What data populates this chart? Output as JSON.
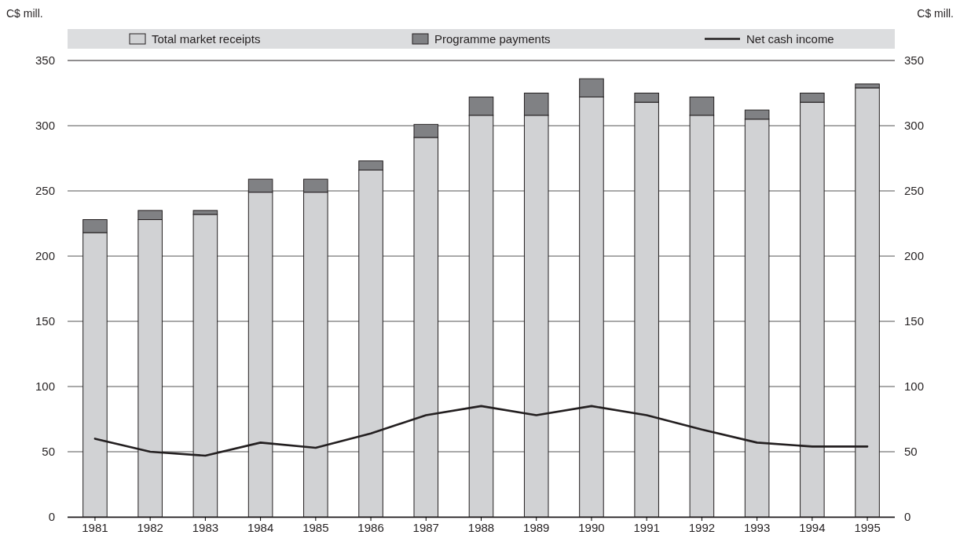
{
  "chart_data": {
    "type": "bar",
    "stacked": true,
    "ylabel": "C$ mill.",
    "y2label": "C$ mill.",
    "categories": [
      "1981",
      "1982",
      "1983",
      "1984",
      "1985",
      "1986",
      "1987",
      "1988",
      "1989",
      "1990",
      "1991",
      "1992",
      "1993",
      "1994",
      "1995"
    ],
    "series": [
      {
        "name": "Total market receipts",
        "color": "#d1d2d4",
        "values": [
          218,
          228,
          232,
          249,
          249,
          266,
          291,
          308,
          308,
          322,
          318,
          308,
          305,
          318,
          329
        ]
      },
      {
        "name": "Programme payments",
        "color": "#808184",
        "values": [
          10,
          7,
          3,
          10,
          10,
          7,
          10,
          14,
          17,
          14,
          7,
          14,
          7,
          7,
          3
        ]
      },
      {
        "name": "Net cash income",
        "type": "line",
        "color": "#231f20",
        "values": [
          60,
          50,
          47,
          57,
          53,
          64,
          78,
          85,
          78,
          85,
          78,
          67,
          57,
          54,
          54
        ]
      }
    ],
    "ylim": [
      0,
      350
    ],
    "yticks": [
      0,
      50,
      100,
      150,
      200,
      250,
      300,
      350
    ],
    "y2lim": [
      0,
      350
    ],
    "y2ticks": [
      0,
      50,
      100,
      150,
      200,
      250,
      300,
      350
    ],
    "grid": "y",
    "legend": "top"
  }
}
